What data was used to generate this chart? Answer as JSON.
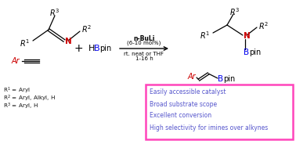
{
  "bg_color": "#ffffff",
  "figsize": [
    3.78,
    1.84
  ],
  "dpi": 100,
  "fs_main": 7.0,
  "fs_small": 5.5,
  "fs_tiny": 5.0,
  "imine": {
    "N_color": "#cc0000",
    "R_color": "#000000"
  },
  "alkyne": {
    "Ar_color": "#cc0000"
  },
  "HBpin_B_color": "#0000ee",
  "arrow_color": "#333333",
  "arrow_text1": "n-BuLi",
  "arrow_text2": "(6-10 mol%)",
  "arrow_text3": "rt. neat or THF",
  "arrow_text4": "1-16 h",
  "product_N_color": "#cc0000",
  "product_B_color": "#0000ee",
  "product_Ar_color": "#cc0000",
  "footnote_color": "#111111",
  "footnotes": [
    "R$^1$ = Aryl",
    "R$^2$ = Aryl, Alkyl, H",
    "R$^3$ = Aryl, H"
  ],
  "box_text": [
    "Easily accessible catalyst",
    "Broad substrate scope",
    "Excellent conversion",
    "High selectivity for imines over alkynes"
  ],
  "box_text_color": "#5555cc",
  "box_edge_color": "#ff44bb",
  "box_face_color": "#ffffff"
}
